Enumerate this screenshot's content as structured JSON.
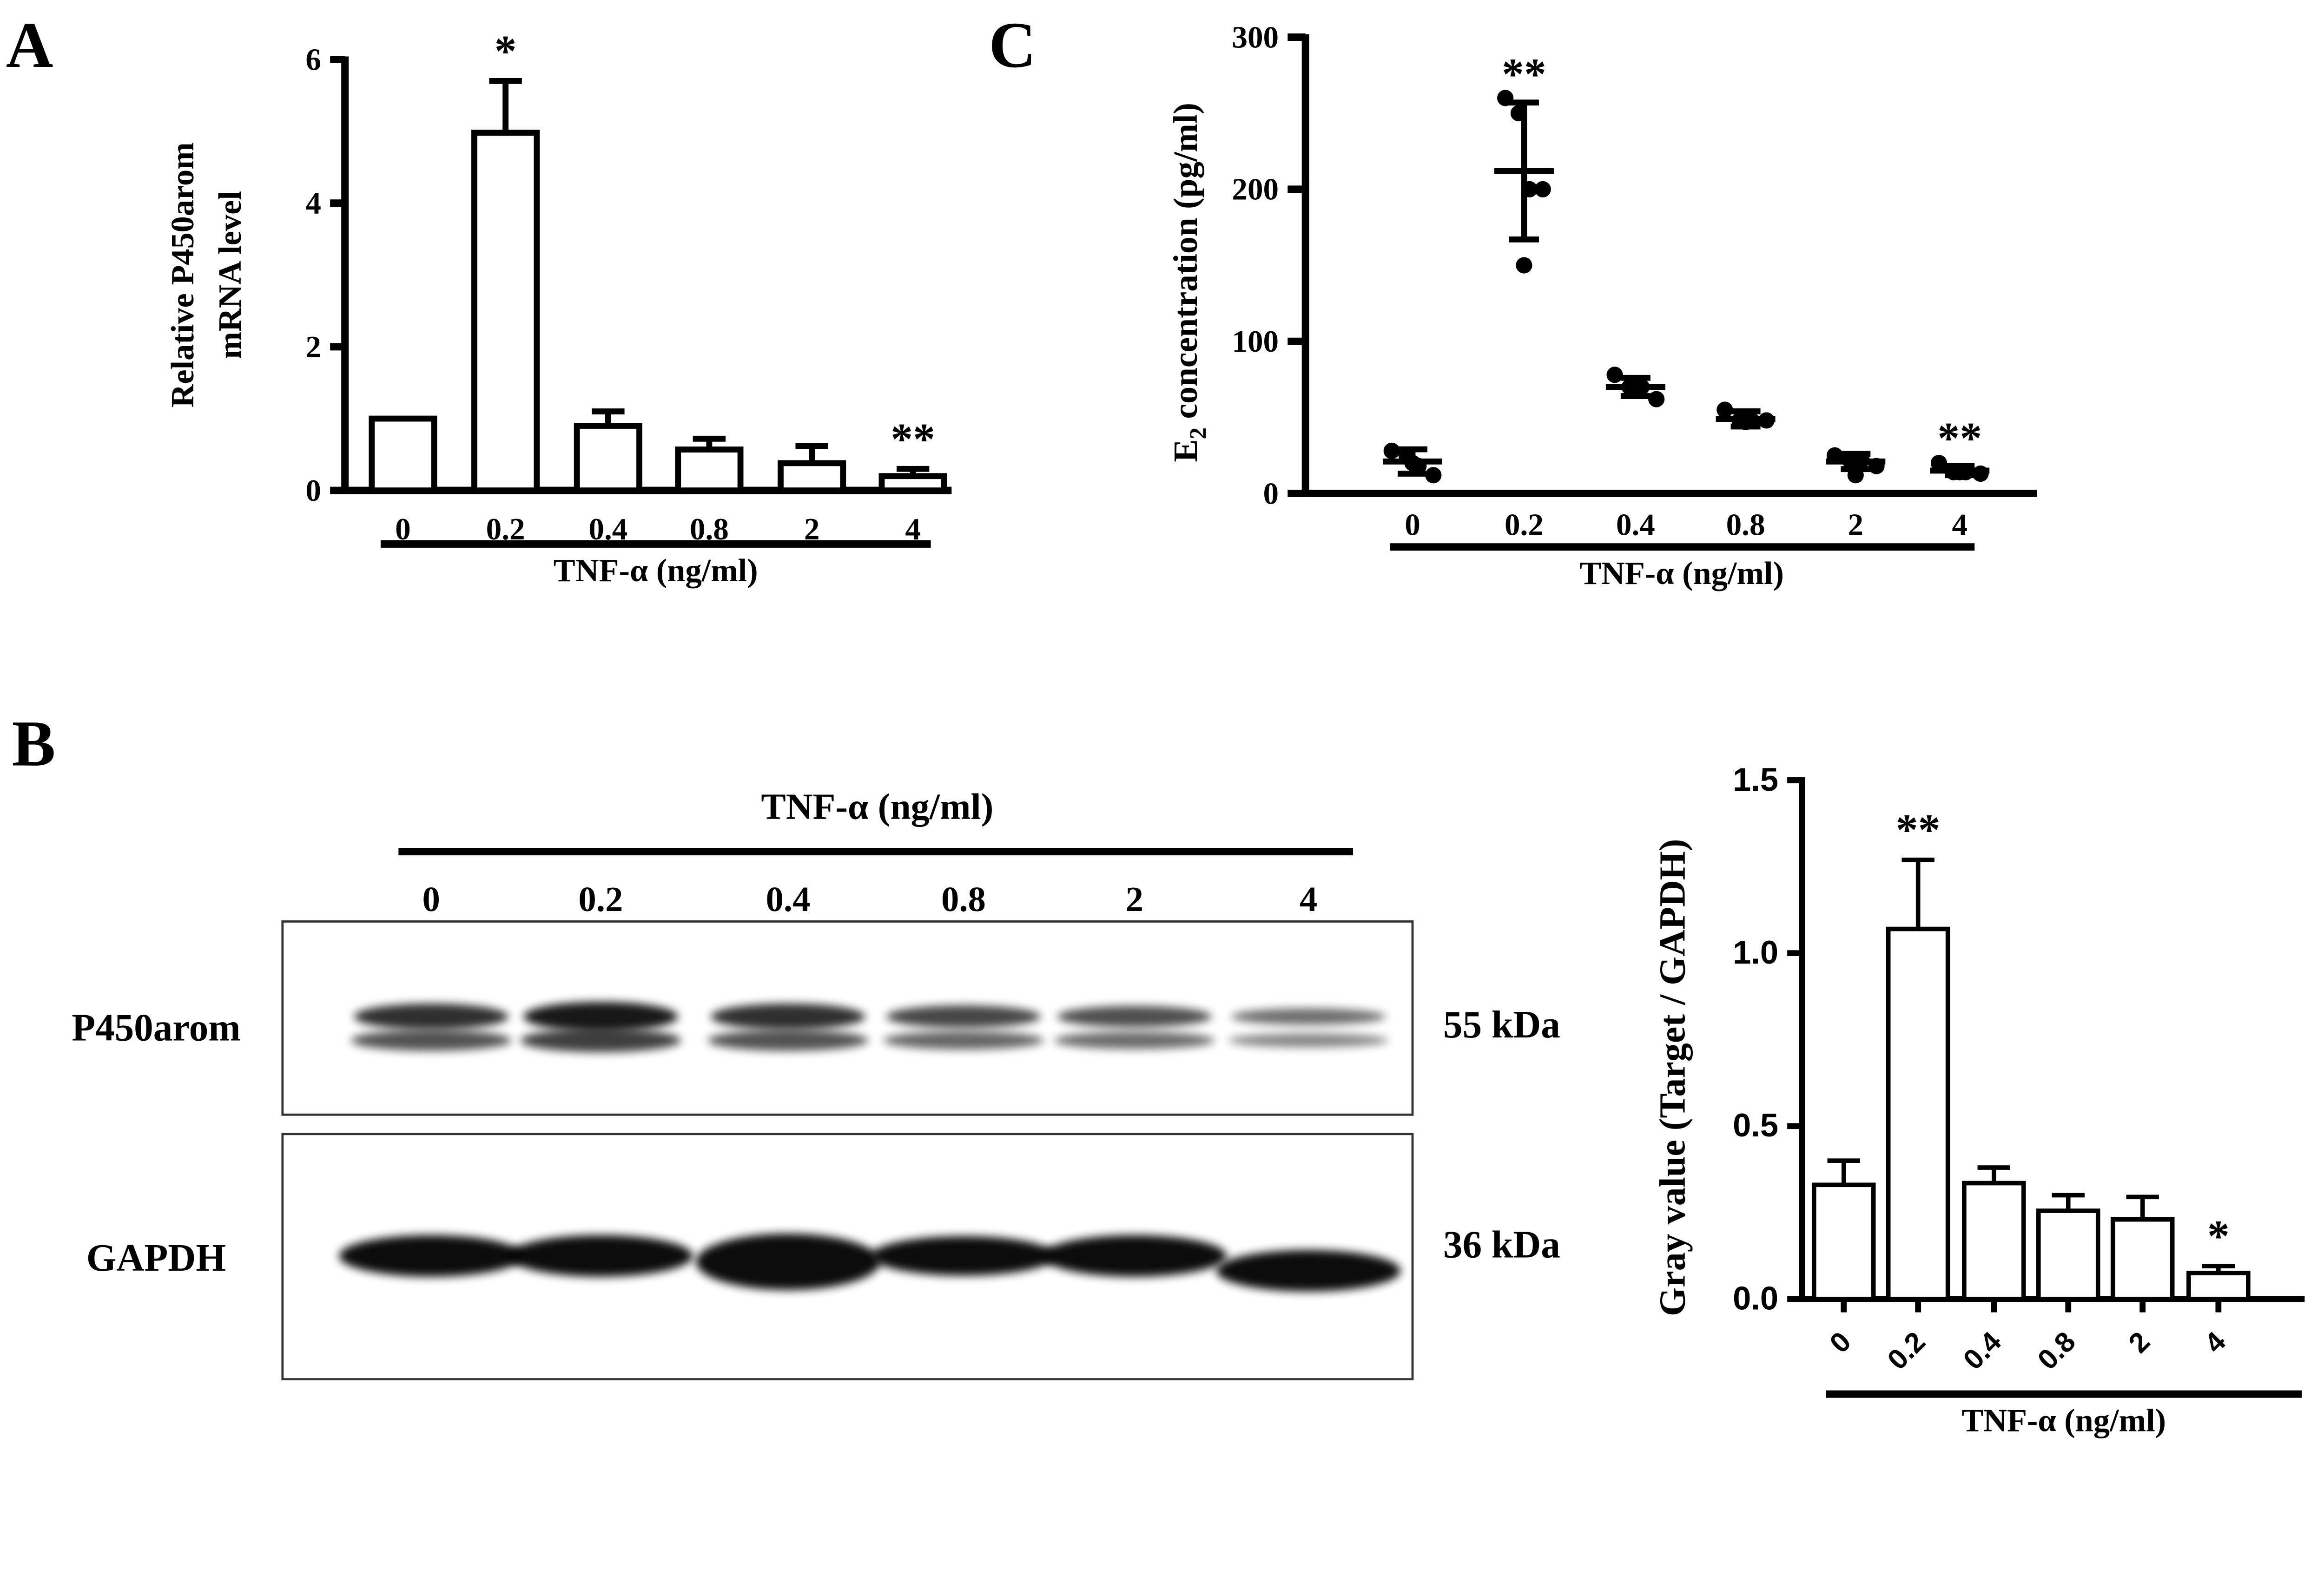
{
  "panels": {
    "a": "A",
    "b": "B",
    "c": "C"
  },
  "chart_data": [
    {
      "id": "A",
      "type": "bar",
      "categories": [
        "0",
        "0.2",
        "0.4",
        "0.8",
        "2",
        "4"
      ],
      "values": [
        1.0,
        4.98,
        0.9,
        0.57,
        0.38,
        0.2
      ],
      "error_upper": [
        1.0,
        5.7,
        1.1,
        0.72,
        0.62,
        0.3
      ],
      "significance": [
        "",
        "*",
        "",
        "",
        "",
        "**"
      ],
      "ylabel": [
        "Relative P450arom",
        "mRNA level"
      ],
      "xlabel": "TNF-α (ng/ml)",
      "ylim": [
        0,
        6
      ],
      "yticks": [
        "0",
        "2",
        "4",
        "6"
      ],
      "ytick_values": [
        0,
        2,
        4,
        6
      ]
    },
    {
      "id": "C",
      "type": "scatter",
      "categories": [
        "0",
        "0.2",
        "0.4",
        "0.8",
        "2",
        "4"
      ],
      "points": [
        [
          28,
          25,
          18,
          12,
          20
        ],
        [
          260,
          250,
          200,
          200,
          150
        ],
        [
          78,
          70,
          70,
          62,
          70
        ],
        [
          55,
          48,
          48,
          48,
          47
        ],
        [
          25,
          22,
          22,
          18,
          12
        ],
        [
          20,
          14,
          14,
          13,
          14
        ]
      ],
      "mean": [
        21,
        212,
        70,
        49,
        21,
        15
      ],
      "sd": [
        8,
        45,
        6,
        5,
        5,
        3
      ],
      "significance": [
        "",
        "**",
        "",
        "",
        "",
        "**"
      ],
      "ylabel_main": "E",
      "ylabel_sub": "2",
      "ylabel_rest": " concentration (pg/ml)",
      "xlabel": "TNF-α (ng/ml)",
      "ylim": [
        0,
        300
      ],
      "yticks": [
        "0",
        "100",
        "200",
        "300"
      ],
      "ytick_values": [
        0,
        100,
        200,
        300
      ]
    },
    {
      "id": "B-quant",
      "type": "bar",
      "categories": [
        "0",
        "0.2",
        "0.4",
        "0.8",
        "2",
        "4"
      ],
      "values": [
        0.33,
        1.07,
        0.335,
        0.255,
        0.23,
        0.075
      ],
      "error_upper": [
        0.4,
        1.27,
        0.38,
        0.3,
        0.295,
        0.095
      ],
      "significance": [
        "",
        "**",
        "",
        "",
        "",
        "*"
      ],
      "ylabel": "Gray value (Target / GAPDH)",
      "xlabel": "TNF-α (ng/ml)",
      "ylim": [
        0,
        1.5
      ],
      "yticks": [
        "0.0",
        "0.5",
        "1.0",
        "1.5"
      ],
      "ytick_values": [
        0,
        0.5,
        1.0,
        1.5
      ]
    }
  ],
  "blot": {
    "treatment_label": "TNF-α (ng/ml)",
    "lanes": [
      "0",
      "0.2",
      "0.4",
      "0.8",
      "2",
      "4"
    ],
    "rows": [
      {
        "label": "P450arom",
        "size": "55 kDa",
        "intensity": [
          0.85,
          1.0,
          0.85,
          0.7,
          0.65,
          0.45
        ]
      },
      {
        "label": "GAPDH",
        "size": "36 kDa",
        "intensity": [
          1.0,
          1.0,
          1.0,
          0.95,
          1.0,
          1.0
        ]
      }
    ]
  }
}
